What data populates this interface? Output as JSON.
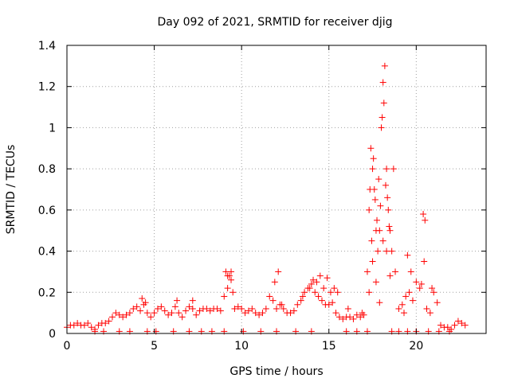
{
  "chart_data": {
    "type": "scatter",
    "title": "Day 092 of 2021, SRMTID for receiver djig",
    "xlabel": "GPS time / hours",
    "ylabel": "SRMTID / TECUs",
    "xlim": [
      0,
      24
    ],
    "ylim": [
      0,
      1.4
    ],
    "xticks": [
      "0",
      "5",
      "10",
      "15",
      "20"
    ],
    "yticks": [
      "0",
      "0.2",
      "0.4",
      "0.6",
      "0.8",
      "1",
      "1.2",
      "1.4"
    ],
    "grid": true,
    "marker": "+",
    "color": "#ff0000",
    "series": [
      {
        "name": "SRMTID",
        "x": [
          0.0,
          0.2,
          0.4,
          0.6,
          0.8,
          1.0,
          1.2,
          1.4,
          1.6,
          1.8,
          2.0,
          2.2,
          2.4,
          2.6,
          2.8,
          3.0,
          3.2,
          3.4,
          3.6,
          3.8,
          4.0,
          4.2,
          4.4,
          4.6,
          4.8,
          5.0,
          5.2,
          5.4,
          5.6,
          5.8,
          6.0,
          6.2,
          6.4,
          6.6,
          6.8,
          7.0,
          7.2,
          7.4,
          7.6,
          7.8,
          8.0,
          8.2,
          8.4,
          8.6,
          8.8,
          9.0,
          9.2,
          9.4,
          9.6,
          9.8,
          10.0,
          10.2,
          10.4,
          10.6,
          10.8,
          11.0,
          11.2,
          11.4,
          11.6,
          11.8,
          12.0,
          12.2,
          12.4,
          12.6,
          12.8,
          13.0,
          13.2,
          13.4,
          13.6,
          13.8,
          14.0,
          14.2,
          14.4,
          14.6,
          14.8,
          15.0,
          15.2,
          15.4,
          15.6,
          15.8,
          16.0,
          16.2,
          16.4,
          16.6,
          16.8,
          17.0,
          17.2,
          17.3,
          17.4,
          17.5,
          17.6,
          17.7,
          17.8,
          17.9,
          18.0,
          18.1,
          18.2,
          18.3,
          18.4,
          18.5,
          18.6,
          18.8,
          19.0,
          19.2,
          19.4,
          19.6,
          19.8,
          20.0,
          20.2,
          20.4,
          20.5,
          20.6,
          20.8,
          21.0,
          21.2,
          21.4,
          21.6,
          21.8,
          22.0,
          22.2,
          22.4,
          22.6,
          22.8,
          17.35,
          17.45,
          17.55,
          17.65,
          17.75,
          17.85,
          17.95,
          18.05,
          18.15,
          18.25,
          18.35,
          18.45,
          17.3,
          17.5,
          17.7,
          17.9,
          18.1,
          18.3,
          18.5,
          18.7,
          19.3,
          19.5,
          19.7,
          20.3,
          20.45,
          20.9,
          9.1,
          9.3,
          9.5,
          11.9,
          12.1,
          13.9,
          14.1,
          14.3,
          14.5,
          14.9,
          15.1,
          15.3,
          1.6,
          2.1,
          3.0,
          3.6,
          4.6,
          5.1,
          6.1,
          7.0,
          7.7,
          8.3,
          9.0,
          10.1,
          11.1,
          12.0,
          13.1,
          14.0,
          16.0,
          16.6,
          17.2,
          18.6,
          19.0,
          19.5,
          20.0,
          20.7,
          21.3,
          21.9,
          4.3,
          4.5,
          6.3,
          7.2,
          9.2,
          9.4,
          12.3,
          13.5,
          14.7,
          15.5,
          16.1,
          16.9
        ],
        "y": [
          0.03,
          0.04,
          0.04,
          0.05,
          0.04,
          0.04,
          0.05,
          0.03,
          0.02,
          0.04,
          0.05,
          0.05,
          0.06,
          0.08,
          0.1,
          0.09,
          0.08,
          0.09,
          0.1,
          0.12,
          0.13,
          0.11,
          0.14,
          0.1,
          0.08,
          0.1,
          0.12,
          0.13,
          0.11,
          0.09,
          0.1,
          0.13,
          0.1,
          0.08,
          0.11,
          0.13,
          0.12,
          0.09,
          0.11,
          0.12,
          0.12,
          0.11,
          0.12,
          0.12,
          0.11,
          0.18,
          0.22,
          0.26,
          0.12,
          0.13,
          0.12,
          0.1,
          0.11,
          0.12,
          0.1,
          0.09,
          0.1,
          0.12,
          0.18,
          0.16,
          0.12,
          0.14,
          0.12,
          0.1,
          0.1,
          0.11,
          0.14,
          0.16,
          0.2,
          0.22,
          0.24,
          0.2,
          0.18,
          0.16,
          0.14,
          0.14,
          0.15,
          0.1,
          0.08,
          0.07,
          0.08,
          0.08,
          0.07,
          0.09,
          0.08,
          0.09,
          0.3,
          0.6,
          0.9,
          0.8,
          0.7,
          0.5,
          0.4,
          0.5,
          1.0,
          1.22,
          1.3,
          0.8,
          0.6,
          0.5,
          0.4,
          0.3,
          0.12,
          0.14,
          0.18,
          0.2,
          0.16,
          0.25,
          0.22,
          0.58,
          0.55,
          0.12,
          0.1,
          0.2,
          0.15,
          0.04,
          0.03,
          0.03,
          0.02,
          0.04,
          0.06,
          0.05,
          0.04,
          0.7,
          0.45,
          0.85,
          0.65,
          0.55,
          0.75,
          0.62,
          1.05,
          1.12,
          0.72,
          0.66,
          0.52,
          0.2,
          0.35,
          0.25,
          0.15,
          0.45,
          0.4,
          0.28,
          0.8,
          0.1,
          0.38,
          0.3,
          0.24,
          0.35,
          0.22,
          0.3,
          0.28,
          0.2,
          0.25,
          0.3,
          0.22,
          0.26,
          0.25,
          0.28,
          0.27,
          0.2,
          0.22,
          0.01,
          0.01,
          0.01,
          0.01,
          0.01,
          0.01,
          0.01,
          0.01,
          0.01,
          0.01,
          0.01,
          0.01,
          0.01,
          0.01,
          0.01,
          0.01,
          0.01,
          0.01,
          0.01,
          0.01,
          0.01,
          0.01,
          0.01,
          0.01,
          0.01,
          0.01,
          0.17,
          0.15,
          0.16,
          0.16,
          0.28,
          0.3,
          0.14,
          0.18,
          0.22,
          0.2,
          0.12,
          0.1
        ]
      }
    ]
  }
}
